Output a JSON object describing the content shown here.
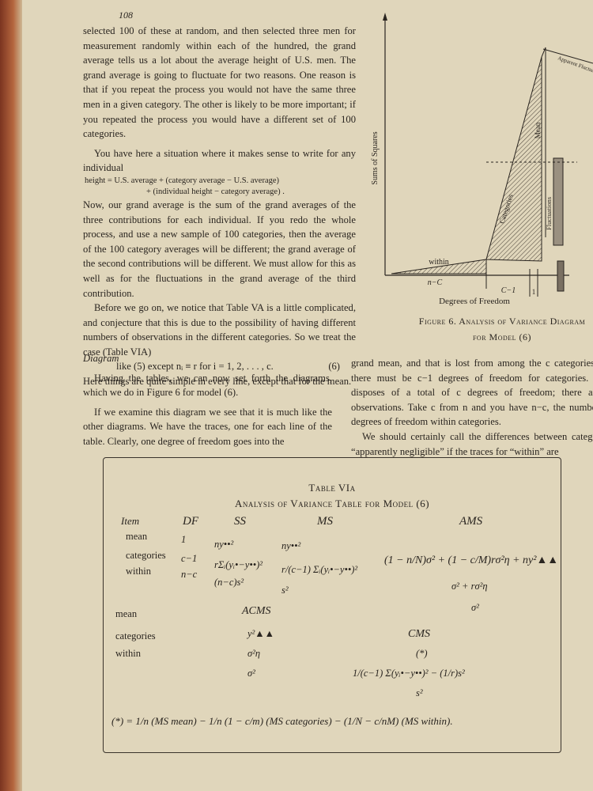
{
  "page_number": "108",
  "left_column": {
    "p1": "selected 100 of these at random, and then selected three men for measurement randomly within each of the hundred, the grand average tells us a lot about the average height of U.S. men. The grand average is going to fluctuate for two reasons. One reason is that if you repeat the process you would not have the same three men in a given category. The other is likely to be more important; if you repeated the process you would have a different set of 100 categories.",
    "p2": "You have here a situation where it makes sense to write for any individual",
    "eq1_line1": "height = U.S. average + (category average − U.S. average)",
    "eq1_line2": "+ (individual height − category average) .",
    "p3": "Now, our grand average is the sum of the grand averages of the three contributions for each individual. If you redo the whole process, and use a new sample of 100 categories, then the average of the 100 category averages will be different; the grand average of the second contributions will be different. We must allow for this as well as for the fluctuations in the grand average of the third contribution.",
    "p4": "Before we go on, we notice that Table VA is a little complicated, and conjecture that this is due to the possibility of having different numbers of observations in the different categories. So we treat the case (Table VIA)",
    "eq2": "like (5) except nᵢ ≡ r for i = 1, 2, . . . , c.",
    "eq2_number": "(6)",
    "p5": "Here things are quite simple in every line, except that for the mean."
  },
  "figure": {
    "y_label": "Sums of Squares",
    "x_label": "Degrees of Freedom",
    "within": "within",
    "categories": "Categories",
    "mean": "Mean",
    "fluctuations": "Fluctuations",
    "apparent": "Apparent Fluctuations",
    "seg_n_c": "n−C",
    "seg_c_1": "C−1",
    "seg_1": "1",
    "caption_line1": "Figure 6. Analysis of Variance Diagram",
    "caption_line2": "for Model (6)"
  },
  "section_heading": "Diagram",
  "p6": "Having the tables, we can now set forth the diagrams, which we do in Figure 6 for model (6).",
  "p7": "If we examine this diagram we see that it is much like the other diagrams. We have the traces, one for each line of the table. Clearly, one degree of freedom goes into the",
  "right_column": {
    "p1": "grand mean, and that is lost from among the c categories. So there must be c−1 degrees of freedom for categories. This disposes of a total of c degrees of freedom; there are n observations. Take c from n and you have n−c, the number of degrees of freedom within categories.",
    "p2": "We should certainly call the differences between categories “apparently negligible” if the traces for “within” are"
  },
  "table": {
    "title": "Table VIa",
    "subtitle": "Analysis of Variance Table for Model (6)",
    "headers": [
      "Item",
      "DF",
      "SS",
      "MS",
      "AMS"
    ],
    "items": [
      "mean",
      "categories",
      "within"
    ],
    "df": [
      "1",
      "c−1",
      "n−c"
    ],
    "ss": [
      "ny••²",
      "rΣᵢ(yᵢ•−y••)²",
      "(n−c)s²"
    ],
    "ms": [
      "ny••²",
      "r/(c−1) Σᵢ(yᵢ•−y••)²",
      "s²"
    ],
    "ams": [
      "(1 − n/N)σ² + (1 − c/M)rσ²η + ny²▲▲",
      "σ² + rσ²η",
      "σ²"
    ],
    "lower_items": [
      "mean",
      "categories",
      "within"
    ],
    "acms_header": "ACMS",
    "acms": [
      "y²▲▲",
      "σ²η",
      "σ²"
    ],
    "cms_header": "CMS",
    "cms": [
      "(*)",
      "1/(c−1) Σ(yᵢ•−y••)² − (1/r)s²",
      "s²"
    ],
    "footnote": "(*) = 1/n (MS mean) − 1/n (1 − c/m) (MS categories) − (1/N − c/nM) (MS within)."
  }
}
